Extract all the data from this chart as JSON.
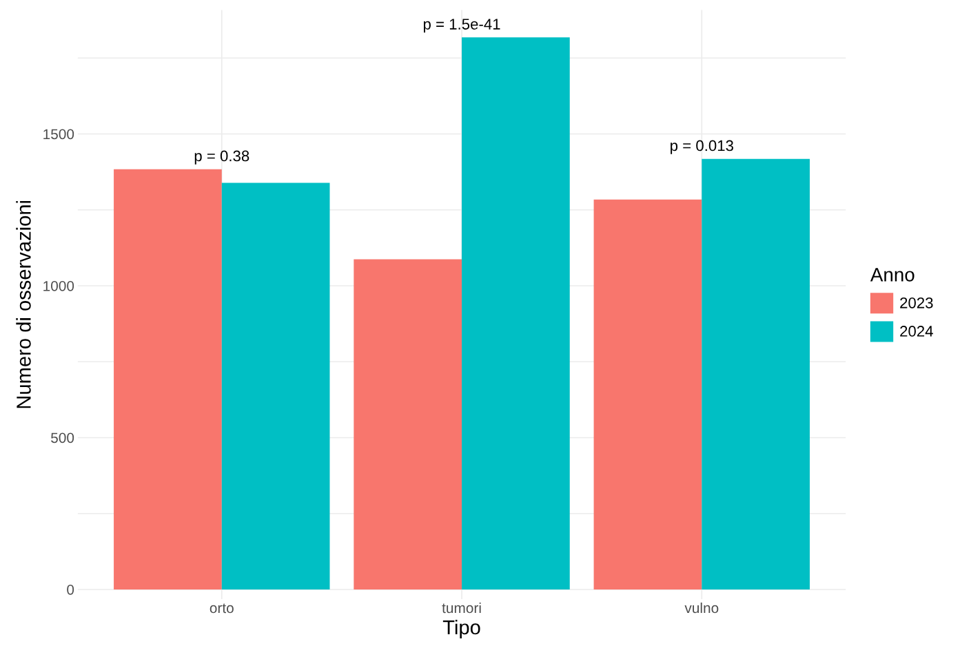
{
  "chart_data": {
    "type": "bar",
    "xlabel": "Tipo",
    "ylabel": "Numero di osservazioni",
    "legend_title": "Anno",
    "categories": [
      "orto",
      "tumori",
      "vulno"
    ],
    "series": [
      {
        "name": "2023",
        "color": "#f8766d",
        "values": [
          1384,
          1087,
          1284
        ]
      },
      {
        "name": "2024",
        "color": "#00bfc4",
        "values": [
          1339,
          1818,
          1418
        ]
      }
    ],
    "ylim": [
      -32,
      1908
    ],
    "yticks": [
      0,
      {
        "value": 250,
        "label": null
      },
      500,
      {
        "value": 750,
        "label": null
      },
      1000,
      {
        "value": 1250,
        "label": null
      },
      1500,
      {
        "value": 1750,
        "label": null
      }
    ],
    "grid": true,
    "legend": "right",
    "annotations": [
      {
        "text": "p = 0.38",
        "x": "orto",
        "y": 1384
      },
      {
        "text": "p = 1.5e-41",
        "x": "tumori",
        "y": 1818
      },
      {
        "text": "p = 0.013",
        "x": "vulno",
        "y": 1418
      }
    ]
  }
}
